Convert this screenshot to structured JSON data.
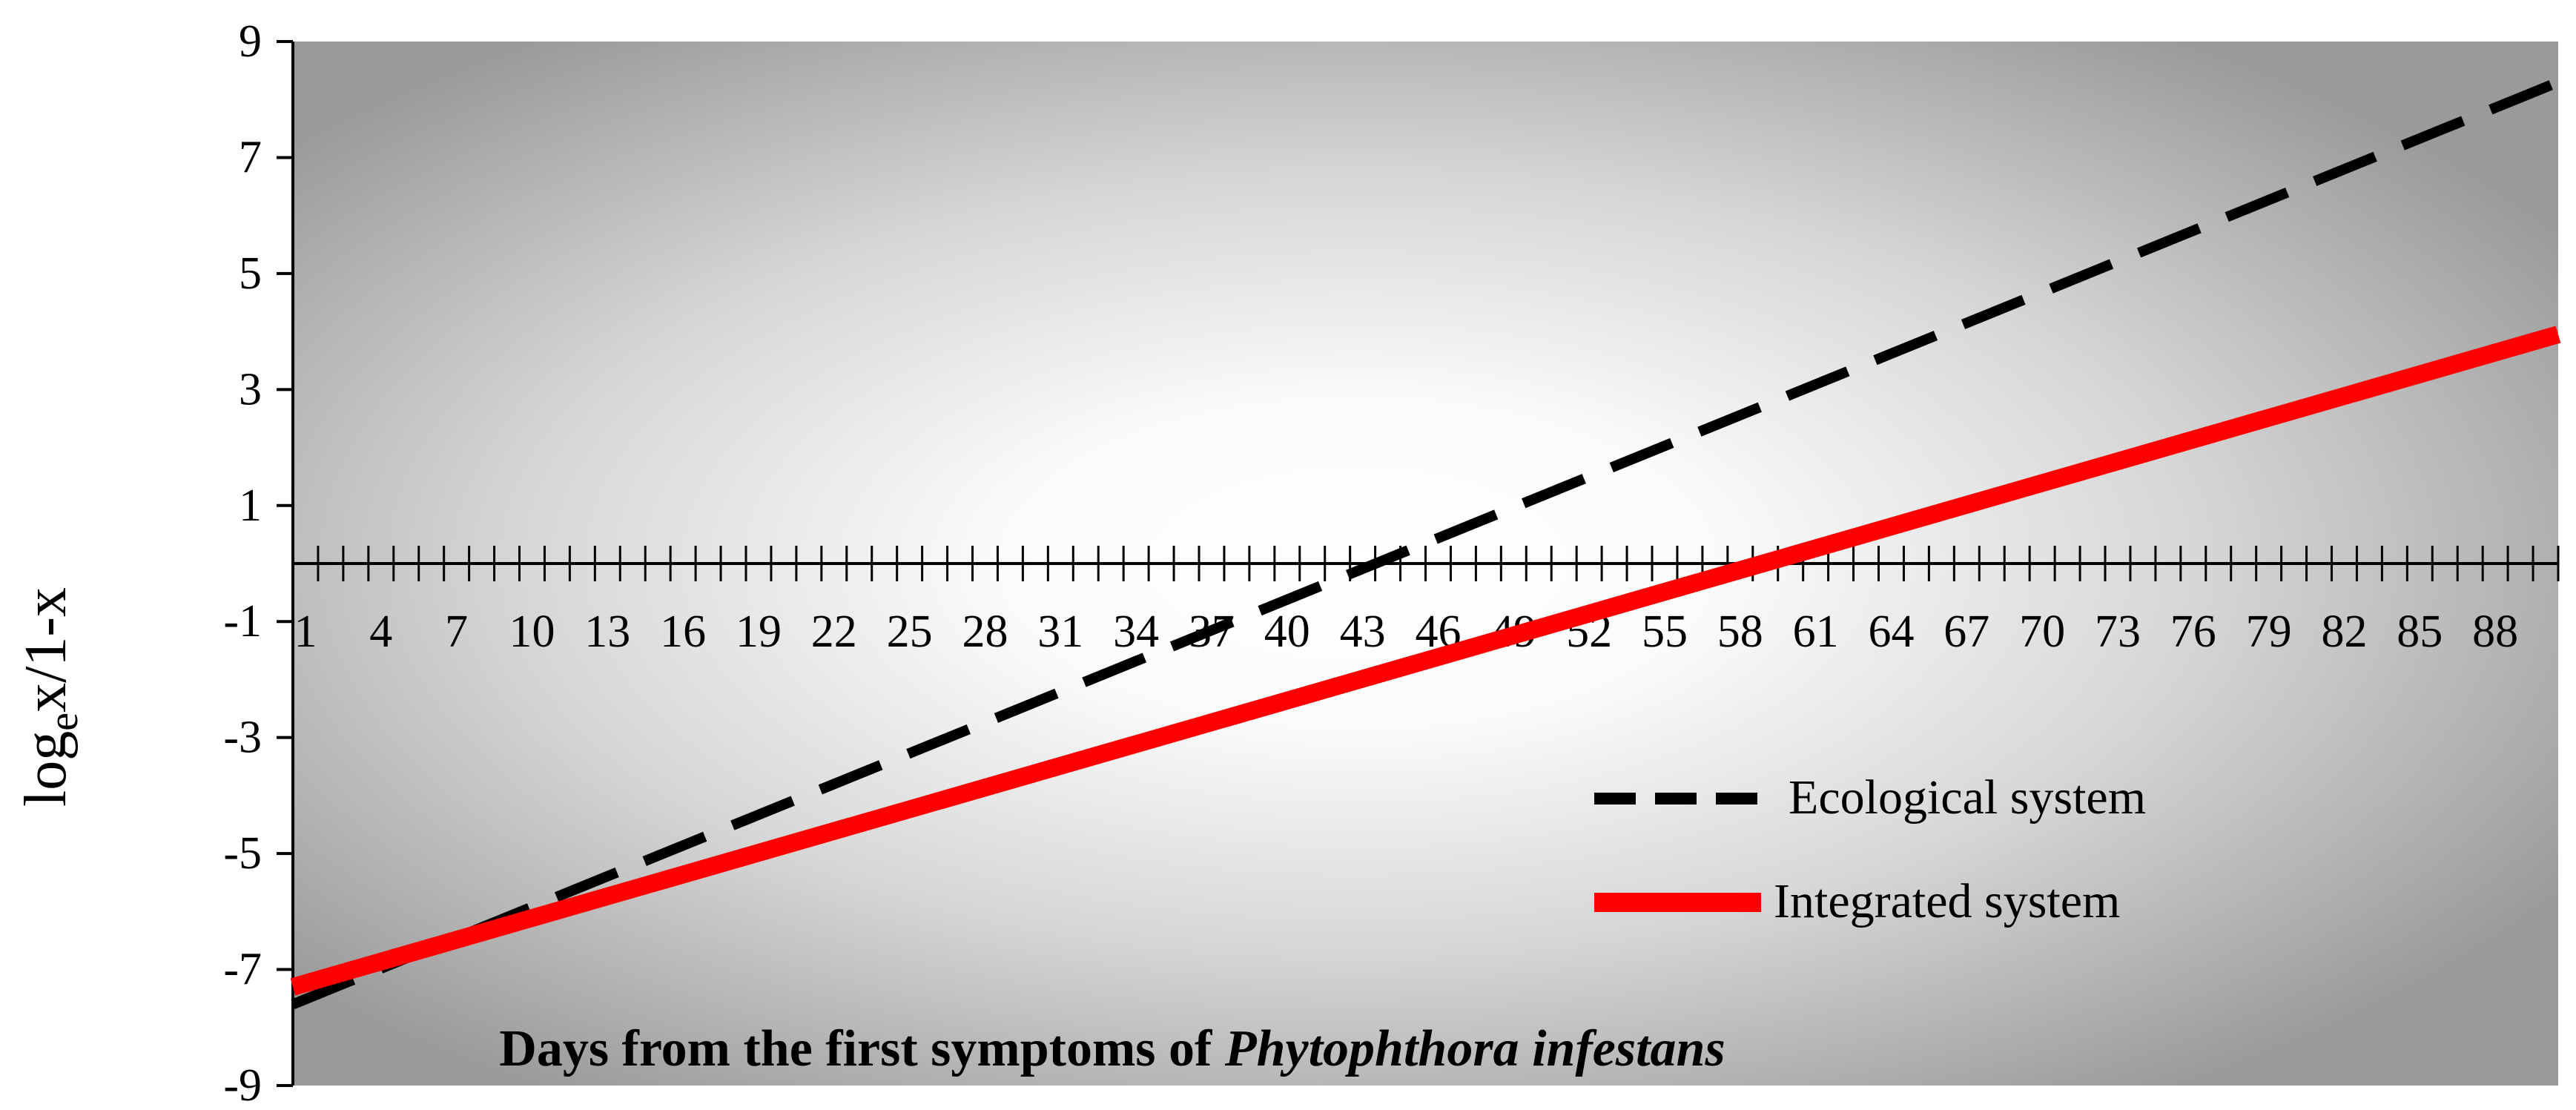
{
  "chart_data": {
    "type": "line",
    "y_title": {
      "base": "log",
      "sub": "e",
      "rest": "x/1-x"
    },
    "x_title": {
      "plain": "Days from the first symptoms of ",
      "italic": "Phytophthora infestans"
    },
    "x_range": [
      1,
      90
    ],
    "ylim": [
      -9,
      9
    ],
    "y_ticks": [
      9,
      7,
      5,
      3,
      1,
      -1,
      -3,
      -5,
      -7,
      -9
    ],
    "y_tick_labels": [
      "9",
      "7",
      "5",
      "3",
      "1",
      "-1",
      "-3",
      "-5",
      "-7",
      "-9"
    ],
    "x_tick_labels": [
      "1",
      "4",
      "7",
      "10",
      "13",
      "16",
      "19",
      "22",
      "25",
      "28",
      "31",
      "34",
      "37",
      "40",
      "43",
      "46",
      "49",
      "52",
      "55",
      "58",
      "61",
      "64",
      "67",
      "70",
      "73",
      "76",
      "79",
      "82",
      "85",
      "88"
    ],
    "x_tick_label_values": [
      1,
      4,
      7,
      10,
      13,
      16,
      19,
      22,
      25,
      28,
      31,
      34,
      37,
      40,
      43,
      46,
      49,
      52,
      55,
      58,
      61,
      64,
      67,
      70,
      73,
      76,
      79,
      82,
      85,
      88
    ],
    "x_axis_crosses_y_at": 0,
    "x_minor_tick_count": 90,
    "grid": false,
    "legend_position": "bottom-right",
    "background": "radial gradient, white center to grey edges",
    "series": [
      {
        "name": "Ecological system",
        "style": "dashed",
        "color": "#000000",
        "x": [
          1,
          90
        ],
        "y": [
          -7.6,
          8.3
        ]
      },
      {
        "name": "Integrated system",
        "style": "solid",
        "color": "#ff0000",
        "x": [
          1,
          90
        ],
        "y": [
          -7.3,
          3.95
        ]
      }
    ]
  }
}
